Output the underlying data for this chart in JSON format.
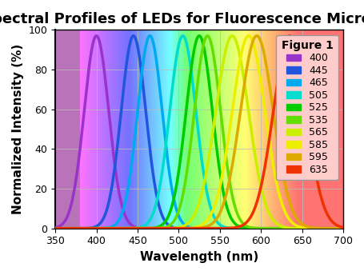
{
  "title": "Spectral Profiles of LEDs for Fluorescence Microscopy",
  "xlabel": "Wavelength (nm)",
  "ylabel": "Normalized Intensity (%)",
  "xlim": [
    350,
    700
  ],
  "ylim": [
    0,
    100
  ],
  "figure_label": "Figure 1",
  "peaks": [
    400,
    445,
    465,
    505,
    525,
    535,
    565,
    585,
    595,
    635
  ],
  "sigmas": [
    15,
    15,
    15,
    16,
    16,
    16,
    20,
    20,
    20,
    20
  ],
  "colors": [
    "#9933CC",
    "#2255DD",
    "#00AAEE",
    "#00DDCC",
    "#00CC00",
    "#66DD00",
    "#CCEE00",
    "#EEEE00",
    "#DDAA00",
    "#EE3300"
  ],
  "legend_colors": [
    "#9933CC",
    "#2255DD",
    "#00AAEE",
    "#00DDCC",
    "#00CC00",
    "#66DD00",
    "#CCEE00",
    "#EEEE00",
    "#DDAA00",
    "#EE3300"
  ],
  "legend_labels": [
    "400",
    "445",
    "465",
    "505",
    "525",
    "535",
    "565",
    "585",
    "595",
    "635"
  ],
  "background_gradient": {
    "colors": [
      "#DDAADD",
      "#AAAAFF",
      "#AADDFF",
      "#AAFFEE",
      "#AAFFAA",
      "#DDFFAA",
      "#FFFFAA",
      "#FFEEAA",
      "#FFCCAA",
      "#FFAAAA"
    ],
    "positions": [
      375,
      420,
      455,
      483,
      515,
      530,
      550,
      570,
      590,
      650
    ]
  },
  "grid_color": "#BBBBBB",
  "title_fontsize": 13,
  "axis_label_fontsize": 11,
  "tick_fontsize": 9,
  "legend_fontsize": 9,
  "line_width": 2.5
}
